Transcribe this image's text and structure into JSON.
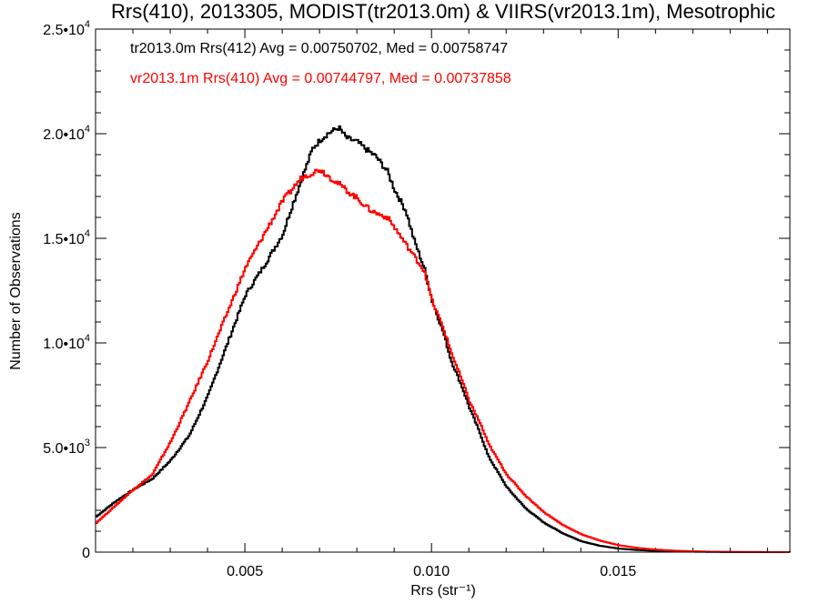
{
  "chart_data": {
    "type": "line",
    "step": true,
    "title": "Rrs(410), 2013305, MODIST(tr2013.0m) & VIIRS(vr2013.1m), Mesotrophic",
    "xlabel": "Rrs (str⁻¹)",
    "ylabel": "Number of Observations",
    "xlim": [
      0.001,
      0.0196
    ],
    "ylim": [
      0,
      25000
    ],
    "grid": false,
    "x_ticks": [
      {
        "value": 0.005,
        "label": "0.005"
      },
      {
        "value": 0.01,
        "label": "0.010"
      },
      {
        "value": 0.015,
        "label": "0.015"
      }
    ],
    "y_ticks": [
      {
        "value": 0,
        "mant": "0",
        "exp": ""
      },
      {
        "value": 5000,
        "mant": "5.0•10",
        "exp": "3"
      },
      {
        "value": 10000,
        "mant": "1.0•10",
        "exp": "4"
      },
      {
        "value": 15000,
        "mant": "1.5•10",
        "exp": "4"
      },
      {
        "value": 20000,
        "mant": "2.0•10",
        "exp": "4"
      },
      {
        "value": 25000,
        "mant": "2.5•10",
        "exp": "4"
      }
    ],
    "annotations": [
      {
        "text": "tr2013.0m Rrs(412) Avg = 0.00750702, Med = 0.00758747",
        "color": "#000000"
      },
      {
        "text": "vr2013.1m Rrs(410) Avg = 0.00744797, Med = 0.00737858",
        "color": "#ff0000"
      }
    ],
    "series": [
      {
        "color": "#000000",
        "x": [
          0.001,
          0.0015,
          0.002,
          0.0025,
          0.003,
          0.0035,
          0.004,
          0.0045,
          0.005,
          0.0055,
          0.006,
          0.0062,
          0.0065,
          0.0068,
          0.007,
          0.0072,
          0.0075,
          0.0077,
          0.008,
          0.0082,
          0.0085,
          0.0088,
          0.009,
          0.0093,
          0.0095,
          0.0098,
          0.01,
          0.0103,
          0.0105,
          0.0108,
          0.011,
          0.0113,
          0.0115,
          0.0118,
          0.012,
          0.0125,
          0.013,
          0.0135,
          0.014,
          0.0145,
          0.015,
          0.0155,
          0.016,
          0.0165,
          0.017,
          0.0175,
          0.018,
          0.0185,
          0.019,
          0.0196
        ],
        "y": [
          1700,
          2400,
          3000,
          3500,
          4400,
          5600,
          7500,
          9900,
          12300,
          13700,
          15200,
          16300,
          17800,
          19300,
          19700,
          20000,
          20300,
          19800,
          19600,
          19300,
          18900,
          18200,
          17300,
          16300,
          15000,
          13500,
          12000,
          10500,
          9200,
          7900,
          6900,
          5600,
          4600,
          3700,
          3100,
          2100,
          1400,
          900,
          520,
          300,
          170,
          100,
          60,
          35,
          20,
          10,
          6,
          4,
          2,
          0
        ]
      },
      {
        "color": "#ff0000",
        "x": [
          0.001,
          0.0015,
          0.002,
          0.0025,
          0.003,
          0.0035,
          0.004,
          0.0045,
          0.005,
          0.0055,
          0.006,
          0.0065,
          0.007,
          0.0072,
          0.0075,
          0.0077,
          0.008,
          0.0083,
          0.0085,
          0.0088,
          0.009,
          0.0093,
          0.0095,
          0.0098,
          0.01,
          0.0103,
          0.0105,
          0.0108,
          0.011,
          0.0113,
          0.0115,
          0.0118,
          0.012,
          0.0125,
          0.013,
          0.0135,
          0.014,
          0.0145,
          0.015,
          0.0155,
          0.016,
          0.0165,
          0.017,
          0.0175,
          0.018,
          0.0185,
          0.019,
          0.0196
        ],
        "y": [
          1400,
          2200,
          3000,
          3700,
          5300,
          7200,
          9200,
          11400,
          13600,
          15200,
          16800,
          17900,
          18300,
          18000,
          17600,
          17300,
          16900,
          16400,
          16200,
          16000,
          15500,
          14700,
          14200,
          13400,
          12000,
          10700,
          9600,
          8200,
          7200,
          6100,
          5200,
          4300,
          3700,
          2700,
          1900,
          1300,
          850,
          550,
          330,
          200,
          120,
          70,
          40,
          22,
          12,
          6,
          3,
          0
        ]
      }
    ]
  }
}
